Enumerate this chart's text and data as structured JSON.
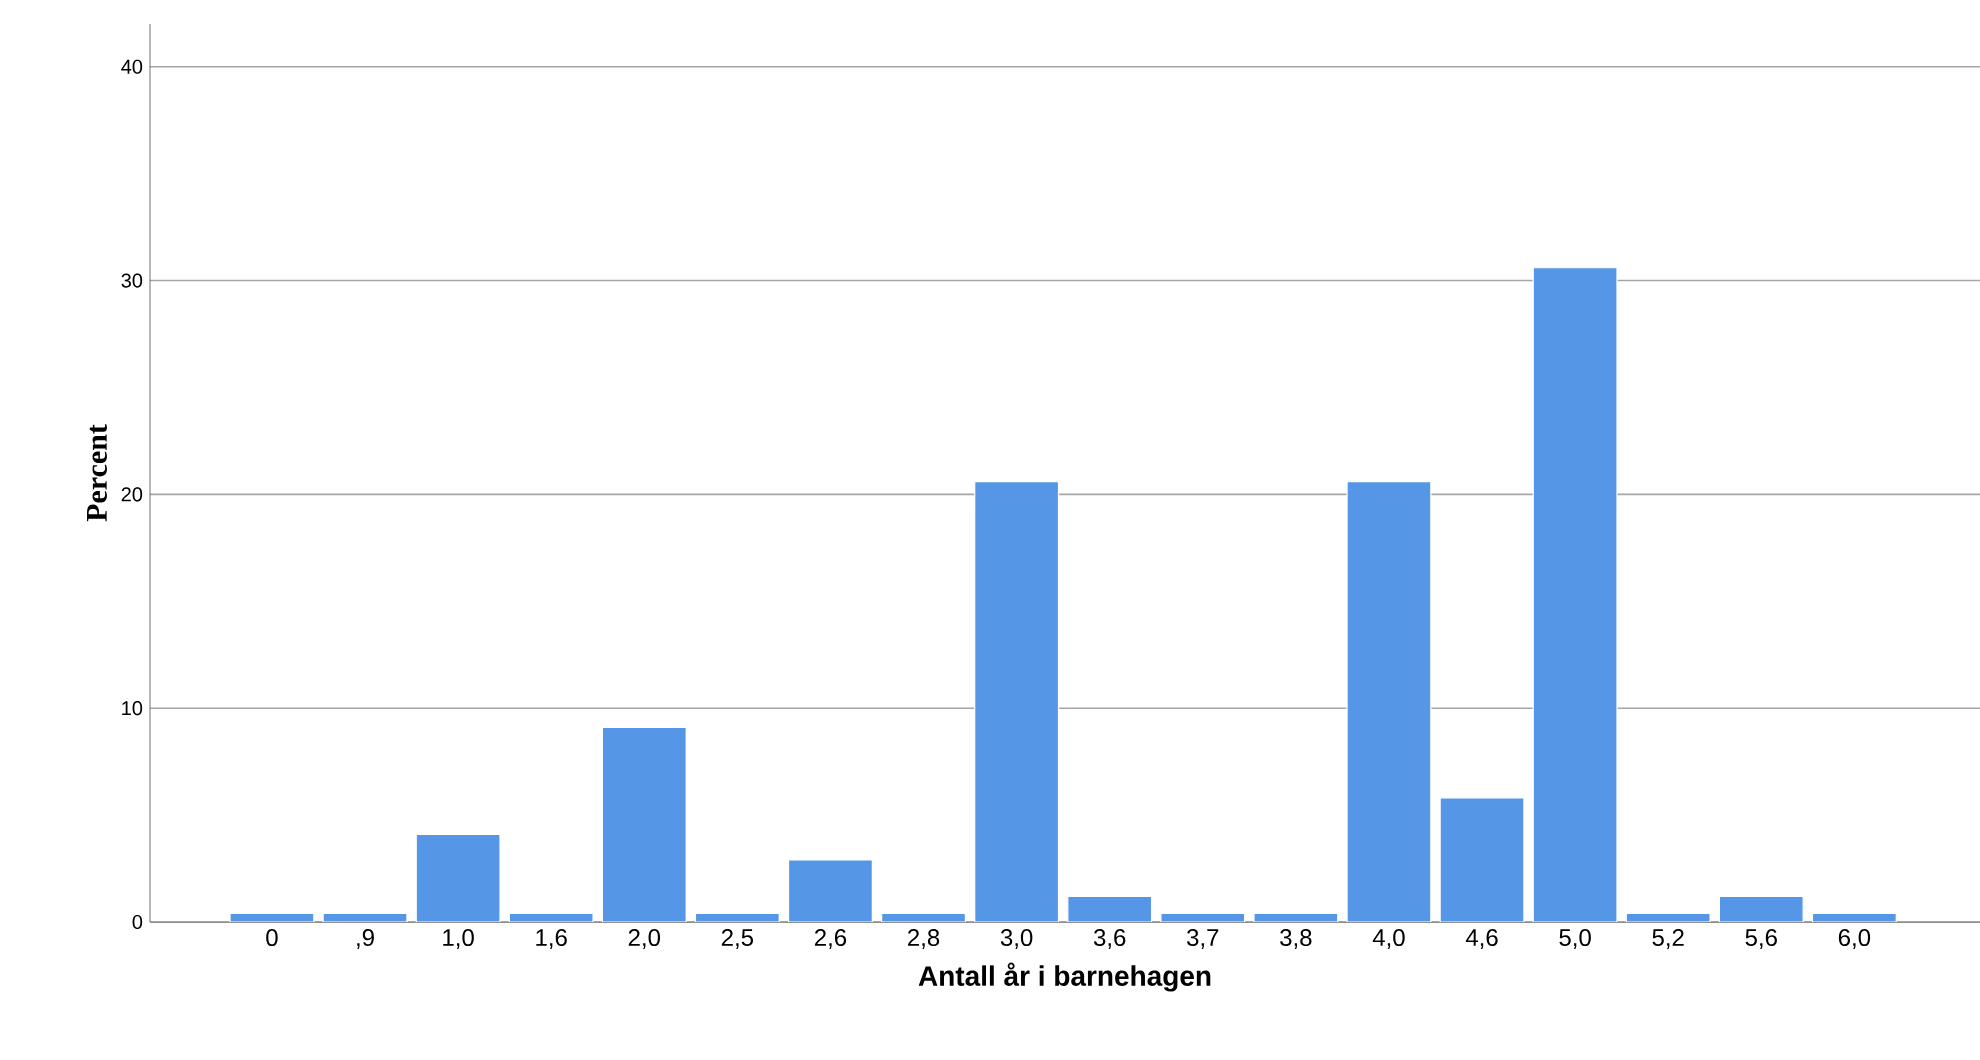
{
  "chart_data": {
    "type": "bar",
    "xlabel": "Antall år i barnehagen",
    "ylabel": "Percent",
    "categories": [
      "0",
      ",9",
      "1,0",
      "1,6",
      "2,0",
      "2,5",
      "2,6",
      "2,8",
      "3,0",
      "3,6",
      "3,7",
      "3,8",
      "4,0",
      "4,6",
      "5,0",
      "5,2",
      "5,6",
      "6,0"
    ],
    "values": [
      0.4,
      0.4,
      4.1,
      0.4,
      9.1,
      0.4,
      2.9,
      0.4,
      20.6,
      1.2,
      0.4,
      0.4,
      20.6,
      5.8,
      30.6,
      0.4,
      1.2,
      0.4
    ],
    "color": "#5596e6",
    "ylim": [
      0,
      42
    ],
    "yticks": [
      0,
      10,
      20,
      30,
      40
    ],
    "grid": "y"
  }
}
